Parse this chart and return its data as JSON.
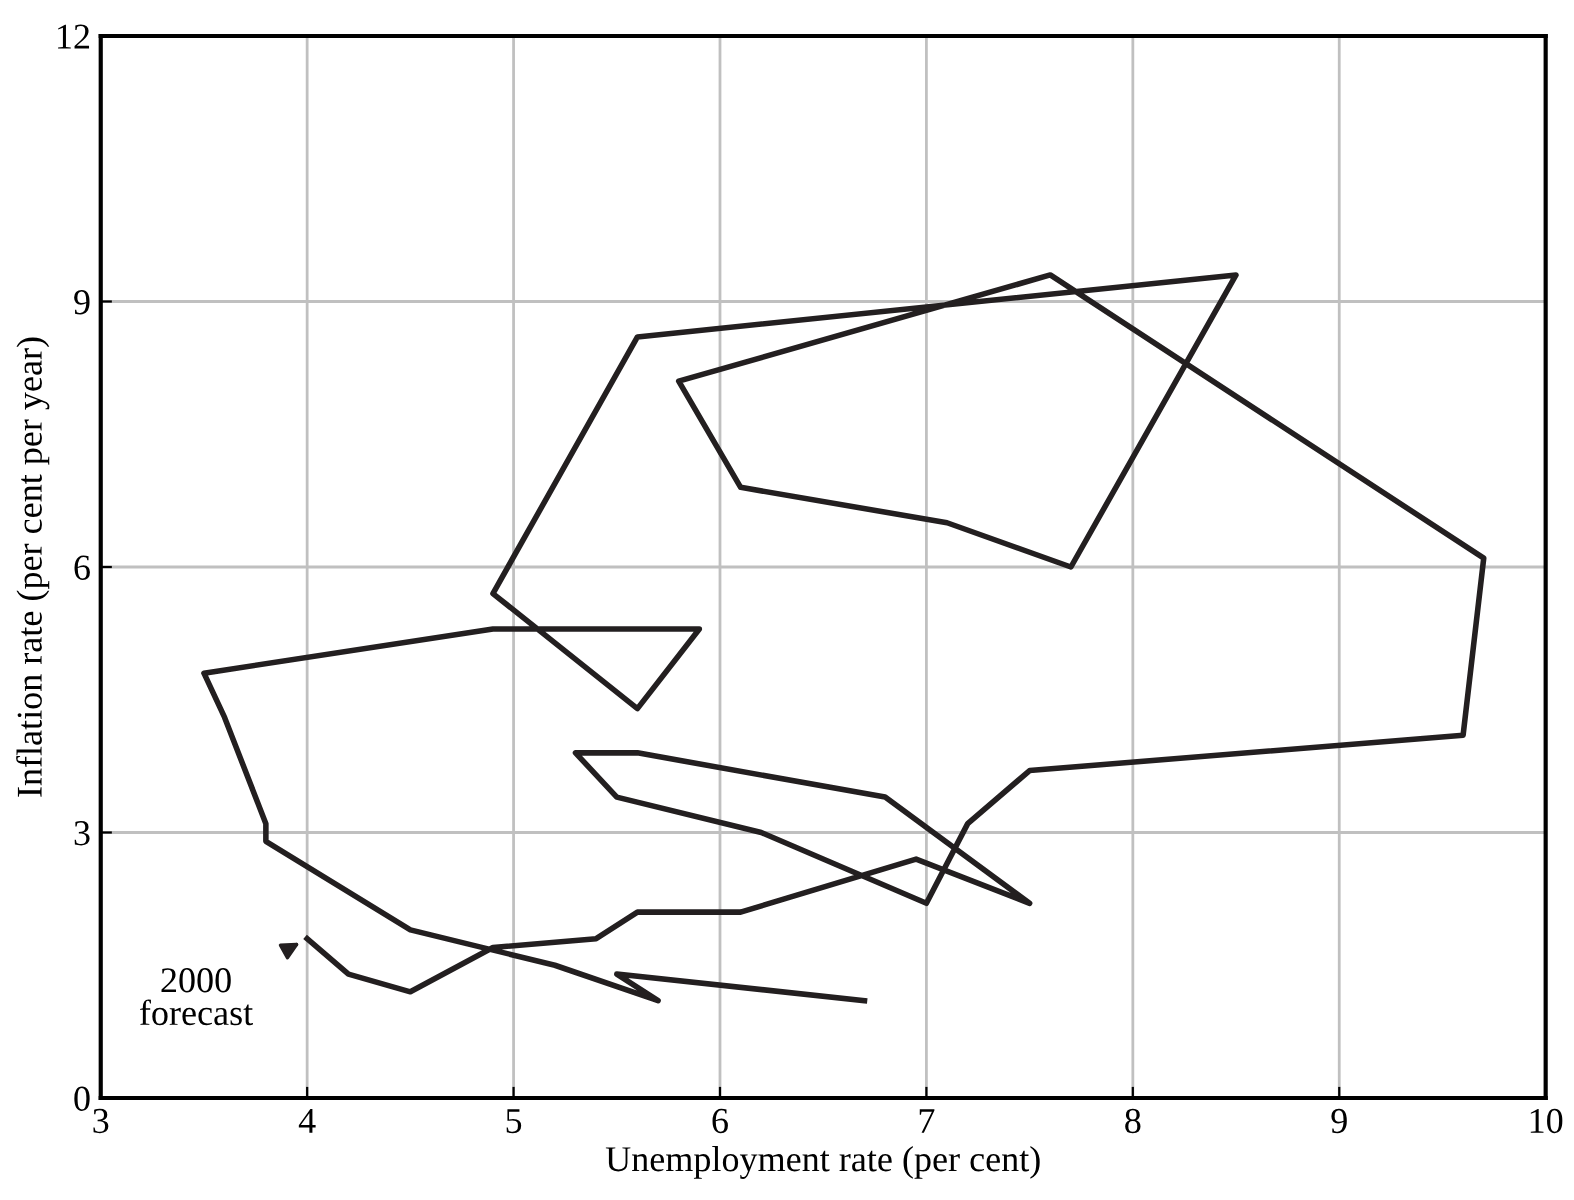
{
  "chart_data": {
    "type": "line",
    "xlabel": "Unemployment rate (per cent)",
    "ylabel": "Inflation rate (per cent per year)",
    "xlim": [
      3,
      10
    ],
    "ylim": [
      0,
      12
    ],
    "xticks": [
      3,
      4,
      5,
      6,
      7,
      8,
      9,
      10
    ],
    "yticks": [
      0,
      3,
      6,
      9,
      12
    ],
    "grid": true,
    "marker": "none",
    "line_style": "solid",
    "series": [
      {
        "color": "#231f20",
        "x": [
          6.7,
          5.5,
          5.7,
          5.2,
          4.5,
          3.8,
          3.8,
          3.6,
          3.5,
          4.9,
          5.9,
          5.6,
          4.9,
          5.6,
          8.5,
          7.7,
          7.1,
          6.1,
          5.8,
          7.6,
          9.7,
          9.6,
          7.5,
          7.2,
          7.0,
          6.2,
          5.5,
          5.3,
          5.6,
          6.8,
          7.5,
          6.95,
          6.1,
          5.6,
          5.4,
          4.9,
          4.5,
          4.2,
          4.0
        ],
        "values": [
          1.1,
          1.4,
          1.1,
          1.5,
          1.9,
          2.9,
          3.1,
          4.3,
          4.8,
          5.3,
          5.3,
          4.4,
          5.7,
          8.6,
          9.3,
          6.0,
          6.5,
          6.9,
          8.1,
          9.3,
          6.1,
          4.1,
          3.7,
          3.1,
          2.2,
          3.0,
          3.4,
          3.9,
          3.9,
          3.4,
          2.2,
          2.7,
          2.1,
          2.1,
          1.8,
          1.7,
          1.2,
          1.4,
          1.8
        ]
      }
    ],
    "annotations": [
      {
        "text": "2000\nforecast",
        "x": 4.0,
        "y": 1.8
      }
    ]
  }
}
